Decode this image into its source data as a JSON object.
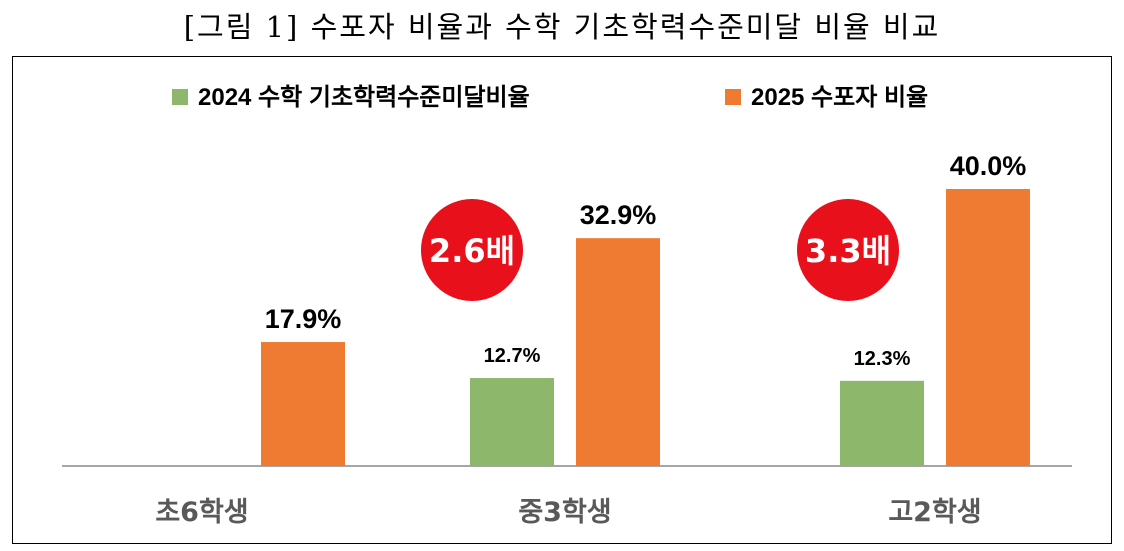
{
  "figure_title": "[그림 1] 수포자 비율과 수학 기초학력수준미달 비율 비교",
  "colors": {
    "green": "#8db86b",
    "orange": "#ee7b31",
    "red": "#e8101a",
    "axis": "#a6a6a6",
    "category_text": "#595959"
  },
  "chart_data": {
    "type": "bar",
    "title": "",
    "categories": [
      "초6학생",
      "중3학생",
      "고2학생"
    ],
    "series": [
      {
        "name": "2024 수학 기초학력수준미달비율",
        "values": [
          null,
          12.7,
          12.3
        ],
        "labels": [
          "",
          "12.7%",
          "12.3%"
        ]
      },
      {
        "name": "2025 수포자 비율",
        "values": [
          17.9,
          32.9,
          40.0
        ],
        "labels": [
          "17.9%",
          "32.9%",
          "40.0%"
        ]
      }
    ],
    "ylim": [
      0,
      40
    ],
    "grid": false,
    "legend": "top",
    "annotations": [
      {
        "category_index": 1,
        "text": "2.6배"
      },
      {
        "category_index": 2,
        "text": "3.3배"
      }
    ]
  }
}
